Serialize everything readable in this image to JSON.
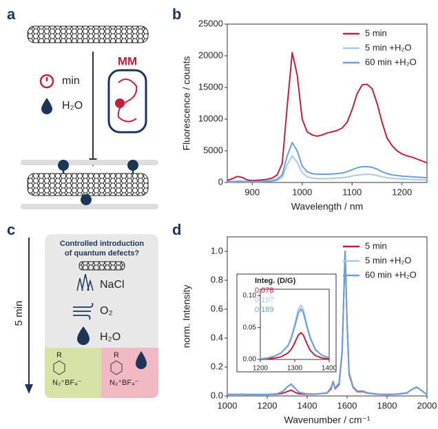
{
  "panels": {
    "labels": [
      "a",
      "b",
      "c",
      "d"
    ],
    "a": {
      "time": "min",
      "water": "H₂O",
      "method": "MM"
    },
    "c": {
      "question": [
        "Controlled introduction",
        "of quantum defects?"
      ],
      "salt": "NaCl",
      "oxygen": "O₂",
      "water": "H₂O",
      "duration": "5 min",
      "substituent": [
        "R",
        "R"
      ],
      "reagent": [
        "N₂⁺BF₄⁻",
        "N₂⁺BF₄⁻"
      ]
    }
  },
  "chart_data": [
    {
      "type": "line",
      "xlabel": "Wavelength / nm",
      "ylabel": "Fluorescence / counts",
      "legend": "upper right",
      "x": [
        850,
        860,
        870,
        880,
        890,
        900,
        910,
        920,
        930,
        940,
        950,
        960,
        970,
        980,
        990,
        1000,
        1010,
        1020,
        1030,
        1040,
        1050,
        1060,
        1070,
        1080,
        1090,
        1100,
        1110,
        1120,
        1130,
        1140,
        1150,
        1160,
        1170,
        1180,
        1190,
        1200,
        1210,
        1220,
        1230,
        1240,
        1250
      ],
      "xlim": [
        850,
        1250
      ],
      "xticks": [
        900,
        1000,
        1100,
        1200
      ],
      "ylim": [
        0,
        25000
      ],
      "yticks": [
        0,
        5000,
        10000,
        15000,
        20000,
        25000
      ],
      "series": [
        {
          "name": "5 min",
          "color": "#c0203e",
          "values": [
            300,
            600,
            950,
            800,
            400,
            300,
            350,
            400,
            500,
            700,
            1200,
            3000,
            12000,
            20500,
            17000,
            10000,
            8000,
            7500,
            7300,
            7500,
            7800,
            8000,
            8200,
            8600,
            9500,
            11500,
            14000,
            15400,
            15500,
            14800,
            12500,
            9500,
            7000,
            5800,
            5000,
            4500,
            4200,
            4000,
            3700,
            3400,
            3100
          ]
        },
        {
          "name": "5 min +H₂O",
          "color": "#a9c9ec",
          "values": [
            100,
            100,
            120,
            120,
            100,
            100,
            100,
            120,
            150,
            200,
            300,
            800,
            2800,
            4200,
            3200,
            1500,
            900,
            700,
            600,
            600,
            600,
            650,
            700,
            750,
            850,
            1000,
            1150,
            1250,
            1300,
            1250,
            1100,
            900,
            750,
            650,
            600,
            550,
            500,
            480,
            450,
            420,
            400
          ]
        },
        {
          "name": "60 min +H₂O",
          "color": "#6d9dd6",
          "values": [
            150,
            150,
            180,
            180,
            150,
            150,
            150,
            180,
            220,
            300,
            500,
            1200,
            4200,
            6300,
            5000,
            2600,
            1700,
            1400,
            1300,
            1300,
            1300,
            1350,
            1400,
            1500,
            1700,
            2000,
            2300,
            2500,
            2500,
            2400,
            2100,
            1700,
            1400,
            1200,
            1100,
            1000,
            950,
            900,
            850,
            800,
            750
          ]
        }
      ]
    },
    {
      "type": "line",
      "xlabel": "Wavenumber / cm⁻¹",
      "ylabel": "norm. Intensity",
      "legend": "upper right",
      "x": [
        1000,
        1050,
        1100,
        1150,
        1200,
        1250,
        1280,
        1300,
        1320,
        1340,
        1360,
        1400,
        1450,
        1500,
        1520,
        1530,
        1540,
        1560,
        1575,
        1590,
        1600,
        1610,
        1630,
        1650,
        1680,
        1700,
        1750,
        1800,
        1850,
        1900,
        1930,
        1950,
        1970,
        2000
      ],
      "xlim": [
        1000,
        2000
      ],
      "xticks": [
        1000,
        1200,
        1400,
        1600,
        1800,
        2000
      ],
      "ylim": [
        0,
        1.1
      ],
      "yticks": [
        {
          "value": 0,
          "label": "0.0"
        },
        0.2,
        0.4,
        0.6,
        0.8,
        {
          "value": 1,
          "label": "1.0"
        }
      ],
      "series": [
        {
          "name": "5 min",
          "color": "#c0203e",
          "values": [
            0.01,
            0.012,
            0.01,
            0.01,
            0.01,
            0.012,
            0.02,
            0.03,
            0.04,
            0.025,
            0.015,
            0.012,
            0.013,
            0.02,
            0.05,
            0.1,
            0.05,
            0.08,
            0.3,
            1.0,
            0.5,
            0.15,
            0.06,
            0.03,
            0.03,
            0.02,
            0.012,
            0.01,
            0.012,
            0.02,
            0.05,
            0.06,
            0.04,
            0.01
          ]
        },
        {
          "name": "5 min +H₂O",
          "color": "#a9c9ec",
          "values": [
            0.01,
            0.012,
            0.01,
            0.01,
            0.01,
            0.015,
            0.035,
            0.065,
            0.085,
            0.055,
            0.025,
            0.014,
            0.014,
            0.022,
            0.06,
            0.1,
            0.055,
            0.09,
            0.32,
            1.0,
            0.52,
            0.16,
            0.065,
            0.035,
            0.035,
            0.022,
            0.013,
            0.011,
            0.013,
            0.022,
            0.05,
            0.06,
            0.04,
            0.01
          ]
        },
        {
          "name": "60 min +H₂O",
          "color": "#6d9dd6",
          "values": [
            0.01,
            0.012,
            0.01,
            0.01,
            0.01,
            0.015,
            0.033,
            0.062,
            0.08,
            0.052,
            0.024,
            0.014,
            0.014,
            0.022,
            0.058,
            0.1,
            0.055,
            0.088,
            0.31,
            1.0,
            0.51,
            0.16,
            0.064,
            0.034,
            0.034,
            0.022,
            0.013,
            0.011,
            0.013,
            0.022,
            0.05,
            0.06,
            0.04,
            0.01
          ]
        }
      ]
    },
    {
      "type": "line",
      "annotation_title": "Integ. (D/G)",
      "annotations": [
        "0.078",
        "0.197",
        "0.189"
      ],
      "x": [
        1200,
        1220,
        1240,
        1260,
        1280,
        1290,
        1300,
        1310,
        1318,
        1325,
        1335,
        1345,
        1360,
        1380,
        1400
      ],
      "xlim": [
        1200,
        1400
      ],
      "xticks": [
        1200,
        1300,
        1400
      ],
      "ylim": [
        0,
        0.11
      ],
      "yticks": [
        {
          "value": 0,
          "label": "0.00"
        },
        0.05,
        {
          "value": 0.1,
          "label": "0.10"
        }
      ],
      "series": [
        {
          "color": "#c0203e",
          "values": [
            0,
            0.001,
            0.002,
            0.004,
            0.01,
            0.016,
            0.026,
            0.038,
            0.042,
            0.038,
            0.025,
            0.014,
            0.006,
            0.002,
            0.001
          ]
        },
        {
          "color": "#a9c9ec",
          "values": [
            0.001,
            0.002,
            0.005,
            0.01,
            0.022,
            0.035,
            0.055,
            0.078,
            0.085,
            0.078,
            0.055,
            0.035,
            0.016,
            0.006,
            0.003
          ]
        },
        {
          "color": "#6d9dd6",
          "values": [
            0.001,
            0.002,
            0.005,
            0.01,
            0.021,
            0.033,
            0.052,
            0.072,
            0.079,
            0.073,
            0.052,
            0.033,
            0.015,
            0.006,
            0.003
          ]
        }
      ]
    }
  ]
}
